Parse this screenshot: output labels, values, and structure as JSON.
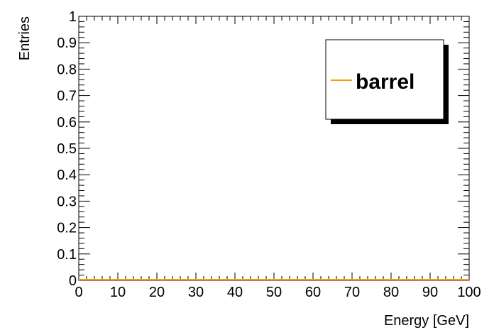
{
  "chart_data": {
    "type": "line",
    "title": "",
    "xlabel": "Energy [GeV]",
    "ylabel": "Entries",
    "xlim": [
      0,
      100
    ],
    "ylim": [
      0,
      1
    ],
    "x_ticks": [
      0,
      10,
      20,
      30,
      40,
      50,
      60,
      70,
      80,
      90,
      100
    ],
    "y_ticks": [
      0,
      0.1,
      0.2,
      0.3,
      0.4,
      0.5,
      0.6,
      0.7,
      0.8,
      0.9,
      1
    ],
    "x_tick_labels": [
      "0",
      "10",
      "20",
      "30",
      "40",
      "50",
      "60",
      "70",
      "80",
      "90",
      "100"
    ],
    "y_tick_labels": [
      "0",
      "0.1",
      "0.2",
      "0.3",
      "0.4",
      "0.5",
      "0.6",
      "0.7",
      "0.8",
      "0.9",
      "1"
    ],
    "grid": false,
    "legend_position": "top-right",
    "series": [
      {
        "name": "barrel",
        "color": "#ff9900",
        "x": [
          0,
          100
        ],
        "y": [
          0,
          0
        ]
      }
    ]
  }
}
